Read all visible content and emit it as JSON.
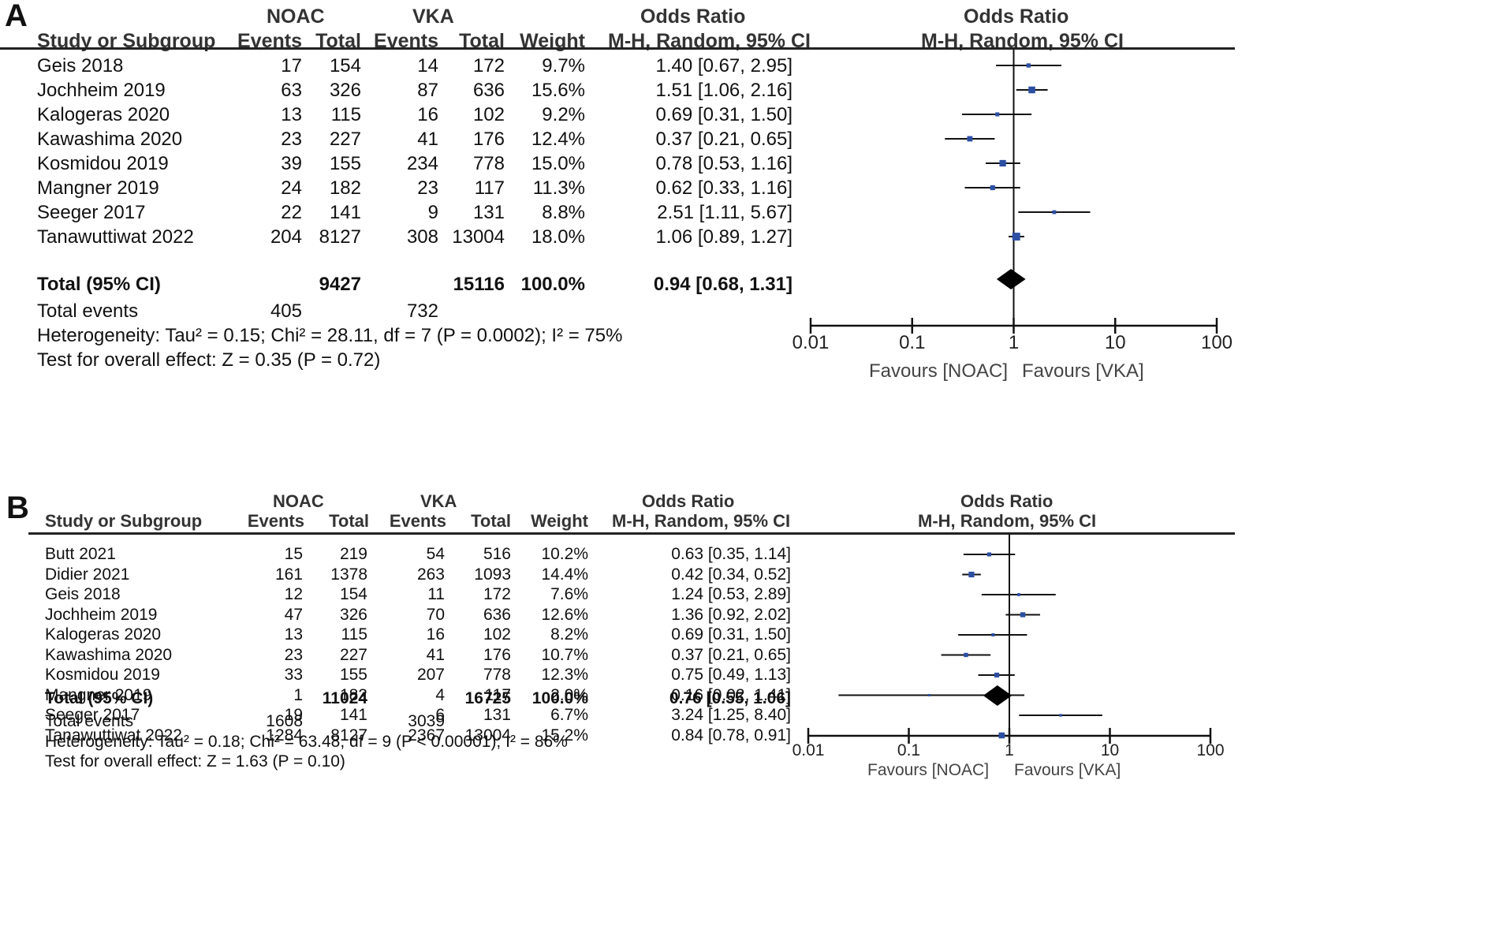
{
  "panels": [
    {
      "letter": "A",
      "headers": {
        "group1": "NOAC",
        "group2": "VKA",
        "or_title_table": "Odds Ratio",
        "or_title_plot": "Odds Ratio",
        "study": "Study or Subgroup",
        "events": "Events",
        "total": "Total",
        "weight": "Weight",
        "method_table": "M-H, Random, 95% CI",
        "method_plot": "M-H, Random, 95% CI"
      },
      "total_row": {
        "label": "Total (95% CI)",
        "noac_total": "9427",
        "vka_total": "15116",
        "weight": "100.0%",
        "ci": "0.94 [0.68, 1.31]"
      },
      "total_events": {
        "label": "Total events",
        "noac": "405",
        "vka": "732"
      },
      "heterogeneity": "Heterogeneity: Tau² = 0.15; Chi² = 28.11, df = 7 (P = 0.0002); I² = 75%",
      "overall_effect": "Test for overall effect: Z = 0.35 (P = 0.72)",
      "axis": {
        "ticks": [
          "0.01",
          "0.1",
          "1",
          "10",
          "100"
        ],
        "favours_left": "Favours [NOAC]",
        "favours_right": "Favours [VKA]"
      }
    },
    {
      "letter": "B",
      "headers": {
        "group1": "NOAC",
        "group2": "VKA",
        "or_title_table": "Odds Ratio",
        "or_title_plot": "Odds Ratio",
        "study": "Study or Subgroup",
        "events": "Events",
        "total": "Total",
        "weight": "Weight",
        "method_table": "M-H, Random, 95% CI",
        "method_plot": "M-H, Random, 95% CI"
      },
      "total_row": {
        "label": "Total (95% CI)",
        "noac_total": "11024",
        "vka_total": "16725",
        "weight": "100.0%",
        "ci": "0.76 [0.55, 1.06]"
      },
      "total_events": {
        "label": "Total events",
        "noac": "1608",
        "vka": "3039"
      },
      "heterogeneity": "Heterogeneity: Tau² = 0.18; Chi² = 63.48, df = 9 (P < 0.00001); I² = 86%",
      "overall_effect": "Test for overall effect: Z = 1.63 (P = 0.10)",
      "axis": {
        "ticks": [
          "0.01",
          "0.1",
          "1",
          "10",
          "100"
        ],
        "favours_left": "Favours [NOAC]",
        "favours_right": "Favours [VKA]"
      }
    }
  ],
  "chart_data": [
    {
      "type": "scatter",
      "subtype": "forest",
      "x_scale": "log",
      "xlim": [
        0.01,
        100
      ],
      "colors": {
        "point": "#2c4fa3",
        "line": "#111111",
        "diamond": "#000000"
      },
      "studies": [
        {
          "name": "Geis 2018",
          "noac_events": "17",
          "noac_total": "154",
          "vka_events": "14",
          "vka_total": "172",
          "weight": "9.7%",
          "ci_text": "1.40 [0.67, 2.95]",
          "or": 1.4,
          "lo": 0.67,
          "hi": 2.95
        },
        {
          "name": "Jochheim 2019",
          "noac_events": "63",
          "noac_total": "326",
          "vka_events": "87",
          "vka_total": "636",
          "weight": "15.6%",
          "ci_text": "1.51 [1.06, 2.16]",
          "or": 1.51,
          "lo": 1.06,
          "hi": 2.16
        },
        {
          "name": "Kalogeras 2020",
          "noac_events": "13",
          "noac_total": "115",
          "vka_events": "16",
          "vka_total": "102",
          "weight": "9.2%",
          "ci_text": "0.69 [0.31, 1.50]",
          "or": 0.69,
          "lo": 0.31,
          "hi": 1.5
        },
        {
          "name": "Kawashima 2020",
          "noac_events": "23",
          "noac_total": "227",
          "vka_events": "41",
          "vka_total": "176",
          "weight": "12.4%",
          "ci_text": "0.37 [0.21, 0.65]",
          "or": 0.37,
          "lo": 0.21,
          "hi": 0.65
        },
        {
          "name": "Kosmidou 2019",
          "noac_events": "39",
          "noac_total": "155",
          "vka_events": "234",
          "vka_total": "778",
          "weight": "15.0%",
          "ci_text": "0.78 [0.53, 1.16]",
          "or": 0.78,
          "lo": 0.53,
          "hi": 1.16
        },
        {
          "name": "Mangner 2019",
          "noac_events": "24",
          "noac_total": "182",
          "vka_events": "23",
          "vka_total": "117",
          "weight": "11.3%",
          "ci_text": "0.62 [0.33, 1.16]",
          "or": 0.62,
          "lo": 0.33,
          "hi": 1.16
        },
        {
          "name": "Seeger 2017",
          "noac_events": "22",
          "noac_total": "141",
          "vka_events": "9",
          "vka_total": "131",
          "weight": "8.8%",
          "ci_text": "2.51 [1.11, 5.67]",
          "or": 2.51,
          "lo": 1.11,
          "hi": 5.67
        },
        {
          "name": "Tanawuttiwat 2022",
          "noac_events": "204",
          "noac_total": "8127",
          "vka_events": "308",
          "vka_total": "13004",
          "weight": "18.0%",
          "ci_text": "1.06 [0.89, 1.27]",
          "or": 1.06,
          "lo": 0.89,
          "hi": 1.27
        }
      ],
      "pooled": {
        "or": 0.94,
        "lo": 0.68,
        "hi": 1.31
      }
    },
    {
      "type": "scatter",
      "subtype": "forest",
      "x_scale": "log",
      "xlim": [
        0.01,
        100
      ],
      "colors": {
        "point": "#2c4fa3",
        "line": "#111111",
        "diamond": "#000000"
      },
      "studies": [
        {
          "name": "Butt 2021",
          "noac_events": "15",
          "noac_total": "219",
          "vka_events": "54",
          "vka_total": "516",
          "weight": "10.2%",
          "ci_text": "0.63 [0.35, 1.14]",
          "or": 0.63,
          "lo": 0.35,
          "hi": 1.14
        },
        {
          "name": "Didier 2021",
          "noac_events": "161",
          "noac_total": "1378",
          "vka_events": "263",
          "vka_total": "1093",
          "weight": "14.4%",
          "ci_text": "0.42 [0.34, 0.52]",
          "or": 0.42,
          "lo": 0.34,
          "hi": 0.52
        },
        {
          "name": "Geis 2018",
          "noac_events": "12",
          "noac_total": "154",
          "vka_events": "11",
          "vka_total": "172",
          "weight": "7.6%",
          "ci_text": "1.24 [0.53, 2.89]",
          "or": 1.24,
          "lo": 0.53,
          "hi": 2.89
        },
        {
          "name": "Jochheim 2019",
          "noac_events": "47",
          "noac_total": "326",
          "vka_events": "70",
          "vka_total": "636",
          "weight": "12.6%",
          "ci_text": "1.36 [0.92, 2.02]",
          "or": 1.36,
          "lo": 0.92,
          "hi": 2.02
        },
        {
          "name": "Kalogeras 2020",
          "noac_events": "13",
          "noac_total": "115",
          "vka_events": "16",
          "vka_total": "102",
          "weight": "8.2%",
          "ci_text": "0.69 [0.31, 1.50]",
          "or": 0.69,
          "lo": 0.31,
          "hi": 1.5
        },
        {
          "name": "Kawashima 2020",
          "noac_events": "23",
          "noac_total": "227",
          "vka_events": "41",
          "vka_total": "176",
          "weight": "10.7%",
          "ci_text": "0.37 [0.21, 0.65]",
          "or": 0.37,
          "lo": 0.21,
          "hi": 0.65
        },
        {
          "name": "Kosmidou 2019",
          "noac_events": "33",
          "noac_total": "155",
          "vka_events": "207",
          "vka_total": "778",
          "weight": "12.3%",
          "ci_text": "0.75 [0.49, 1.13]",
          "or": 0.75,
          "lo": 0.49,
          "hi": 1.13
        },
        {
          "name": "Mangner 2019",
          "noac_events": "1",
          "noac_total": "182",
          "vka_events": "4",
          "vka_total": "117",
          "weight": "2.0%",
          "ci_text": "0.16 [0.02, 1.41]",
          "or": 0.16,
          "lo": 0.02,
          "hi": 1.41
        },
        {
          "name": "Seeger 2017",
          "noac_events": "19",
          "noac_total": "141",
          "vka_events": "6",
          "vka_total": "131",
          "weight": "6.7%",
          "ci_text": "3.24 [1.25, 8.40]",
          "or": 3.24,
          "lo": 1.25,
          "hi": 8.4
        },
        {
          "name": "Tanawuttiwat 2022",
          "noac_events": "1284",
          "noac_total": "8127",
          "vka_events": "2367",
          "vka_total": "13004",
          "weight": "15.2%",
          "ci_text": "0.84 [0.78, 0.91]",
          "or": 0.84,
          "lo": 0.78,
          "hi": 0.91
        }
      ],
      "pooled": {
        "or": 0.76,
        "lo": 0.55,
        "hi": 1.06
      }
    }
  ]
}
